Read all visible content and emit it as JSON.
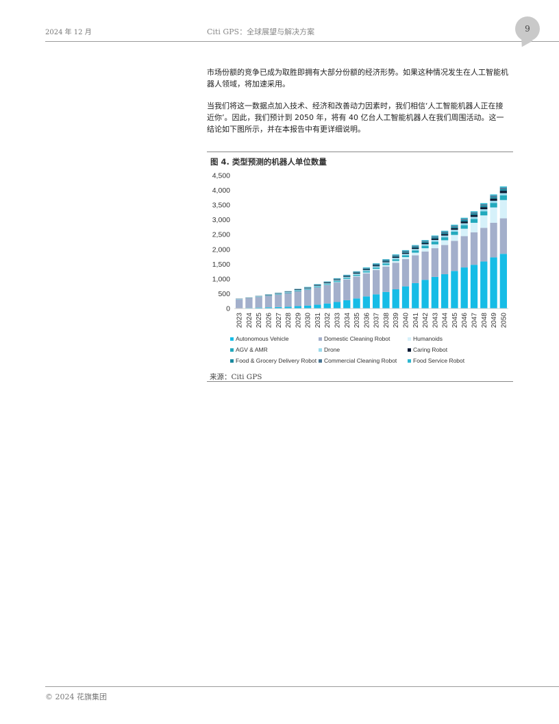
{
  "header": {
    "date": "2024 年 12 月",
    "title": "Citi GPS：全球展望与解决方案",
    "page_number": "9"
  },
  "body": {
    "para1": "市场份额的竞争已成为取胜即拥有大部分份额的经济形势。如果这种情况发生在人工智能机器人领域，将加速采用。",
    "para2": "当我们将这一数据点加入技术、经济和改善动力因素时，我们相信‘人工智能机器人正在接近你’。因此，我们预计到 2050 年，将有 40 亿台人工智能机器人在我们周围活动。这一结论如下图所示，并在本报告中有更详细说明。"
  },
  "figure": {
    "title": "图 4. 类型预测的机器人单位数量",
    "source": "来源：Citi GPS"
  },
  "footer": {
    "copyright": "© 2024 花旗集团"
  },
  "chart_data": {
    "type": "bar",
    "stacked": true,
    "title": "",
    "xlabel": "",
    "ylabel": "",
    "ylim": [
      0,
      4500
    ],
    "yticks": [
      "0",
      "500",
      "1,000",
      "1,500",
      "2,000",
      "2,500",
      "3,000",
      "3,500",
      "4,000",
      "4,500"
    ],
    "categories": [
      "2023",
      "2024",
      "2025",
      "2026",
      "2027",
      "2028",
      "2029",
      "2030",
      "2031",
      "2032",
      "2033",
      "2034",
      "2035",
      "2036",
      "2037",
      "2038",
      "2039",
      "2040",
      "2041",
      "2042",
      "2043",
      "2044",
      "2045",
      "2046",
      "2047",
      "2048",
      "2049",
      "2050"
    ],
    "legend_position": "bottom",
    "series": [
      {
        "name": "Autonomous Vehicle",
        "color": "#16bce6",
        "values": [
          10,
          20,
          30,
          40,
          50,
          60,
          80,
          100,
          130,
          170,
          220,
          280,
          340,
          410,
          480,
          560,
          650,
          750,
          860,
          970,
          1070,
          1160,
          1270,
          1390,
          1480,
          1590,
          1730,
          1850
        ]
      },
      {
        "name": "Domestic Cleaning Robot",
        "color": "#a3afcb",
        "values": [
          300,
          330,
          360,
          390,
          420,
          460,
          500,
          540,
          580,
          620,
          660,
          700,
          740,
          780,
          820,
          860,
          900,
          920,
          940,
          960,
          970,
          990,
          1020,
          1060,
          1100,
          1140,
          1170,
          1200
        ]
      },
      {
        "name": "Humanoids",
        "color": "#d6f1fa",
        "values": [
          0,
          0,
          0,
          0,
          0,
          0,
          0,
          0,
          5,
          10,
          15,
          20,
          25,
          30,
          40,
          50,
          60,
          70,
          90,
          110,
          130,
          160,
          200,
          250,
          320,
          420,
          520,
          620
        ]
      },
      {
        "name": "AGV & AMR",
        "color": "#23a9bd",
        "values": [
          5,
          5,
          10,
          10,
          15,
          15,
          20,
          20,
          25,
          25,
          30,
          30,
          35,
          40,
          45,
          50,
          55,
          60,
          70,
          80,
          90,
          100,
          110,
          120,
          130,
          140,
          150,
          160
        ]
      },
      {
        "name": "Drone",
        "color": "#9bdaec",
        "values": [
          10,
          10,
          15,
          15,
          20,
          20,
          25,
          25,
          30,
          30,
          35,
          35,
          40,
          40,
          45,
          45,
          50,
          50,
          55,
          55,
          60,
          60,
          65,
          65,
          70,
          70,
          75,
          75
        ]
      },
      {
        "name": "Caring Robot",
        "color": "#0a1a33",
        "values": [
          5,
          5,
          5,
          10,
          10,
          10,
          15,
          15,
          15,
          20,
          20,
          20,
          25,
          25,
          30,
          30,
          35,
          35,
          40,
          40,
          45,
          50,
          55,
          60,
          65,
          70,
          75,
          80
        ]
      },
      {
        "name": "Food & Grocery Delivery Robot",
        "color": "#1a8aa0",
        "values": [
          0,
          0,
          5,
          5,
          5,
          10,
          10,
          10,
          15,
          15,
          15,
          20,
          20,
          25,
          25,
          30,
          30,
          35,
          35,
          40,
          40,
          45,
          45,
          50,
          50,
          55,
          55,
          60
        ]
      },
      {
        "name": "Commercial Cleaning Robot",
        "color": "#4a7694",
        "values": [
          5,
          5,
          5,
          5,
          10,
          10,
          10,
          10,
          15,
          15,
          15,
          20,
          20,
          20,
          25,
          25,
          25,
          30,
          30,
          30,
          35,
          35,
          35,
          40,
          40,
          40,
          45,
          45
        ]
      },
      {
        "name": "Food Service Robot",
        "color": "#2fb7d0",
        "values": [
          0,
          0,
          0,
          5,
          5,
          5,
          5,
          10,
          10,
          10,
          15,
          15,
          15,
          20,
          20,
          20,
          25,
          25,
          25,
          30,
          30,
          30,
          35,
          35,
          35,
          40,
          40,
          40
        ]
      }
    ]
  }
}
